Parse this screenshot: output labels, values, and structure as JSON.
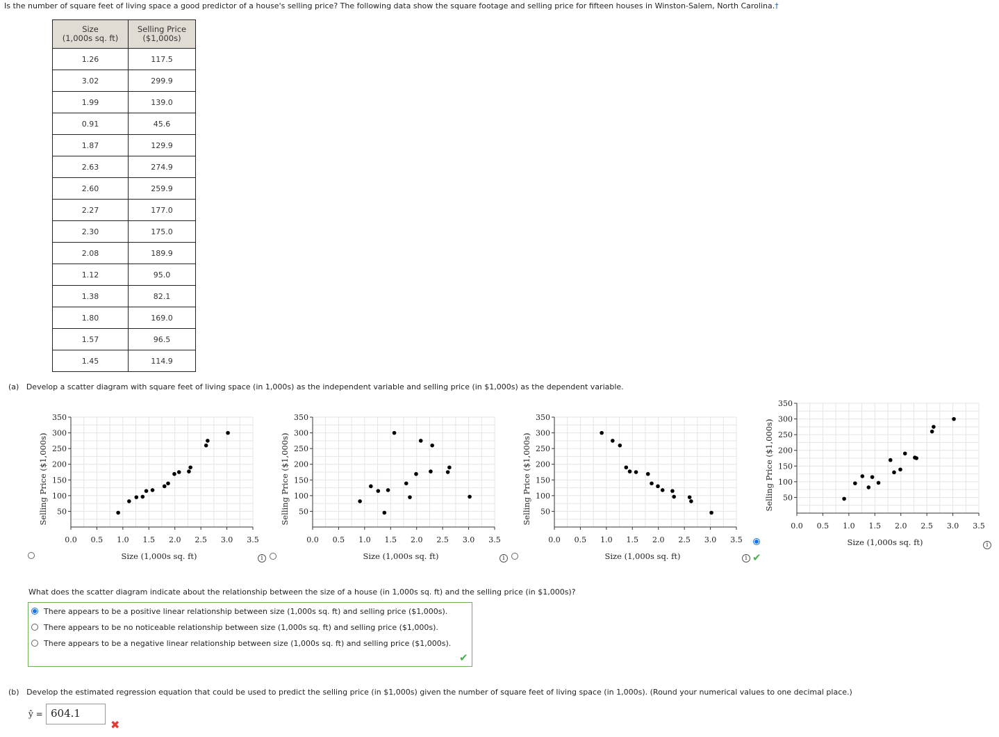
{
  "intro": "Is the number of square feet of living space a good predictor of a house's selling price? The following data show the square footage and selling price for fifteen houses in Winston-Salem, North Carolina.",
  "footnote_mark": "†",
  "table": {
    "header_size": [
      "Size",
      "(1,000s sq. ft)"
    ],
    "header_price": [
      "Selling Price",
      "($1,000s)"
    ],
    "rows": [
      [
        "1.26",
        "117.5"
      ],
      [
        "3.02",
        "299.9"
      ],
      [
        "1.99",
        "139.0"
      ],
      [
        "0.91",
        "45.6"
      ],
      [
        "1.87",
        "129.9"
      ],
      [
        "2.63",
        "274.9"
      ],
      [
        "2.60",
        "259.9"
      ],
      [
        "2.27",
        "177.0"
      ],
      [
        "2.30",
        "175.0"
      ],
      [
        "2.08",
        "189.9"
      ],
      [
        "1.12",
        "95.0"
      ],
      [
        "1.38",
        "82.1"
      ],
      [
        "1.80",
        "169.0"
      ],
      [
        "1.57",
        "96.5"
      ],
      [
        "1.45",
        "114.9"
      ]
    ]
  },
  "part_a": {
    "label": "(a)",
    "text": "Develop a scatter diagram with square feet of living space (in 1,000s) as the independent variable and selling price (in $1,000s) as the dependent variable.",
    "selected_option_index": 3
  },
  "chart_data": [
    {
      "type": "scatter",
      "title": "",
      "xlabel": "Size (1,000s sq. ft)",
      "ylabel": "Selling Price ($1,000s)",
      "xlim": [
        0,
        3.5
      ],
      "ylim": [
        0,
        350
      ],
      "xticks": [
        "0.0",
        "0.5",
        "1.0",
        "1.5",
        "2.0",
        "2.5",
        "3.0",
        "3.5"
      ],
      "yticks": [
        "50",
        "100",
        "150",
        "200",
        "250",
        "300",
        "350"
      ],
      "grid": true,
      "points": [
        [
          0.91,
          45.6
        ],
        [
          1.12,
          82.1
        ],
        [
          1.26,
          95.0
        ],
        [
          1.38,
          96.5
        ],
        [
          1.45,
          114.9
        ],
        [
          1.57,
          117.5
        ],
        [
          1.8,
          129.9
        ],
        [
          1.87,
          139.0
        ],
        [
          1.99,
          169.0
        ],
        [
          2.08,
          175.0
        ],
        [
          2.27,
          177.0
        ],
        [
          2.3,
          189.9
        ],
        [
          2.6,
          259.9
        ],
        [
          2.63,
          274.9
        ],
        [
          3.02,
          299.9
        ]
      ]
    },
    {
      "type": "scatter",
      "title": "",
      "xlabel": "Size (1,000s sq. ft)",
      "ylabel": "Selling Price ($1,000s)",
      "xlim": [
        0,
        3.5
      ],
      "ylim": [
        0,
        350
      ],
      "xticks": [
        "0.0",
        "0.5",
        "1.0",
        "1.5",
        "2.0",
        "2.5",
        "3.0",
        "3.5"
      ],
      "yticks": [
        "50",
        "100",
        "150",
        "200",
        "250",
        "300",
        "350"
      ],
      "grid": true,
      "points": [
        [
          0.91,
          82.1
        ],
        [
          1.12,
          129.9
        ],
        [
          1.26,
          114.9
        ],
        [
          1.38,
          45.6
        ],
        [
          1.45,
          117.5
        ],
        [
          1.57,
          299.9
        ],
        [
          1.8,
          139.0
        ],
        [
          1.87,
          95.0
        ],
        [
          1.99,
          169.0
        ],
        [
          2.08,
          274.9
        ],
        [
          2.27,
          177.0
        ],
        [
          2.3,
          259.9
        ],
        [
          2.6,
          175.0
        ],
        [
          2.63,
          189.9
        ],
        [
          3.02,
          96.5
        ]
      ]
    },
    {
      "type": "scatter",
      "title": "",
      "xlabel": "Size (1,000s sq. ft)",
      "ylabel": "Selling Price ($1,000s)",
      "xlim": [
        0,
        3.5
      ],
      "ylim": [
        0,
        350
      ],
      "xticks": [
        "0.0",
        "0.5",
        "1.0",
        "1.5",
        "2.0",
        "2.5",
        "3.0",
        "3.5"
      ],
      "yticks": [
        "50",
        "100",
        "150",
        "200",
        "250",
        "300",
        "350"
      ],
      "grid": true,
      "points": [
        [
          0.91,
          299.9
        ],
        [
          1.12,
          274.9
        ],
        [
          1.26,
          259.9
        ],
        [
          1.38,
          189.9
        ],
        [
          1.45,
          177.0
        ],
        [
          1.57,
          175.0
        ],
        [
          1.8,
          169.0
        ],
        [
          1.87,
          139.0
        ],
        [
          1.99,
          129.9
        ],
        [
          2.08,
          117.5
        ],
        [
          2.27,
          114.9
        ],
        [
          2.3,
          96.5
        ],
        [
          2.6,
          95.0
        ],
        [
          2.63,
          82.1
        ],
        [
          3.02,
          45.6
        ]
      ]
    },
    {
      "type": "scatter",
      "title": "",
      "xlabel": "Size (1,000s sq. ft)",
      "ylabel": "Selling Price ($1,000s)",
      "xlim": [
        0,
        3.5
      ],
      "ylim": [
        0,
        350
      ],
      "xticks": [
        "0.0",
        "0.5",
        "1.0",
        "1.5",
        "2.0",
        "2.5",
        "3.0",
        "3.5"
      ],
      "yticks": [
        "50",
        "100",
        "150",
        "200",
        "250",
        "300",
        "350"
      ],
      "grid": true,
      "points": [
        [
          0.91,
          45.6
        ],
        [
          1.12,
          95.0
        ],
        [
          1.26,
          117.5
        ],
        [
          1.38,
          82.1
        ],
        [
          1.45,
          114.9
        ],
        [
          1.57,
          96.5
        ],
        [
          1.8,
          169.0
        ],
        [
          1.87,
          129.9
        ],
        [
          1.99,
          139.0
        ],
        [
          2.08,
          189.9
        ],
        [
          2.27,
          177.0
        ],
        [
          2.3,
          175.0
        ],
        [
          2.6,
          259.9
        ],
        [
          2.63,
          274.9
        ],
        [
          3.02,
          299.9
        ]
      ]
    }
  ],
  "relationship_question": {
    "text": "What does the scatter diagram indicate about the relationship between the size of a house (in 1,000s sq. ft) and the selling price (in $1,000s)?",
    "options": [
      "There appears to be a positive linear relationship between size (1,000s sq. ft) and selling price ($1,000s).",
      "There appears to be no noticeable relationship between size (1,000s sq. ft) and selling price ($1,000s).",
      "There appears to be a negative linear relationship between size (1,000s sq. ft) and selling price ($1,000s)."
    ],
    "selected_index": 0
  },
  "part_b": {
    "label": "(b)",
    "text": "Develop the estimated regression equation that could be used to predict the selling price (in $1,000s) given the number of square feet of living space (in 1,000s). (Round your numerical values to one decimal place.)",
    "yhat_label": "ŷ =",
    "yhat_value": "604.1"
  },
  "icons": {
    "info": "i",
    "check": "✔",
    "cross": "✖"
  }
}
